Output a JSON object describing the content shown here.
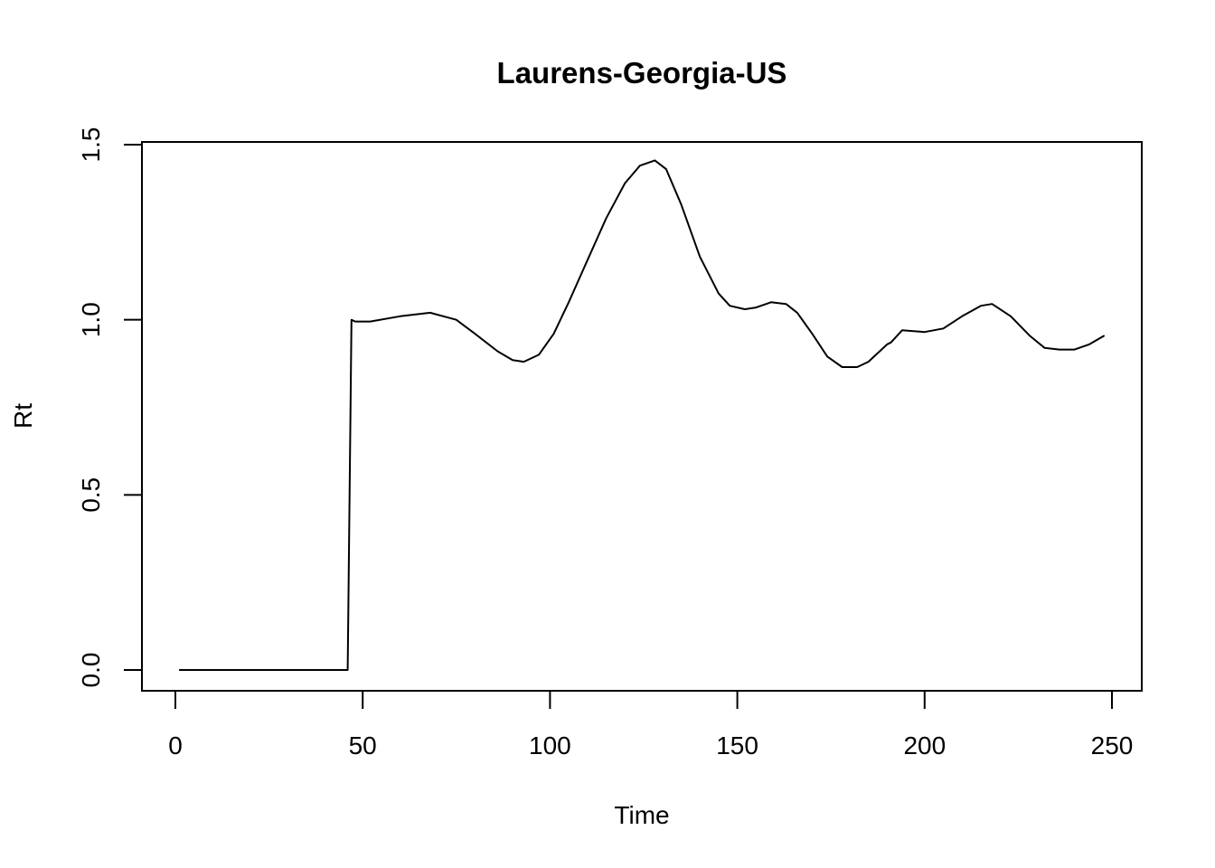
{
  "chart_data": {
    "type": "line",
    "title": "Laurens-Georgia-US",
    "xlabel": "Time",
    "ylabel": "Rt",
    "xlim": [
      0,
      250
    ],
    "ylim": [
      0,
      1.5
    ],
    "x_ticks": [
      0,
      50,
      100,
      150,
      200,
      250
    ],
    "y_ticks": [
      0.0,
      0.5,
      1.0,
      1.5
    ],
    "x_tick_labels": [
      "0",
      "50",
      "100",
      "150",
      "200",
      "250"
    ],
    "y_tick_labels": [
      "0.0",
      "0.5",
      "1.0",
      "1.5"
    ],
    "grid": false,
    "series": [
      {
        "x": [
          1,
          46,
          47,
          48,
          52,
          60,
          68,
          75,
          80,
          86,
          90,
          93,
          97,
          101,
          105,
          110,
          115,
          120,
          124,
          128,
          131,
          135,
          140,
          145,
          148,
          152,
          155,
          159,
          163,
          166,
          170,
          174,
          178,
          182,
          185,
          188,
          190,
          191,
          194,
          200,
          205,
          210,
          215,
          218,
          223,
          228,
          232,
          236,
          240,
          244,
          248
        ],
        "y": [
          0,
          0,
          1.0,
          0.995,
          0.995,
          1.01,
          1.02,
          1.0,
          0.96,
          0.91,
          0.885,
          0.88,
          0.9,
          0.96,
          1.05,
          1.17,
          1.29,
          1.39,
          1.44,
          1.455,
          1.43,
          1.33,
          1.18,
          1.075,
          1.04,
          1.03,
          1.035,
          1.05,
          1.045,
          1.02,
          0.96,
          0.895,
          0.865,
          0.865,
          0.88,
          0.91,
          0.93,
          0.935,
          0.97,
          0.965,
          0.975,
          1.01,
          1.04,
          1.045,
          1.01,
          0.955,
          0.92,
          0.915,
          0.915,
          0.93,
          0.955
        ]
      }
    ]
  }
}
